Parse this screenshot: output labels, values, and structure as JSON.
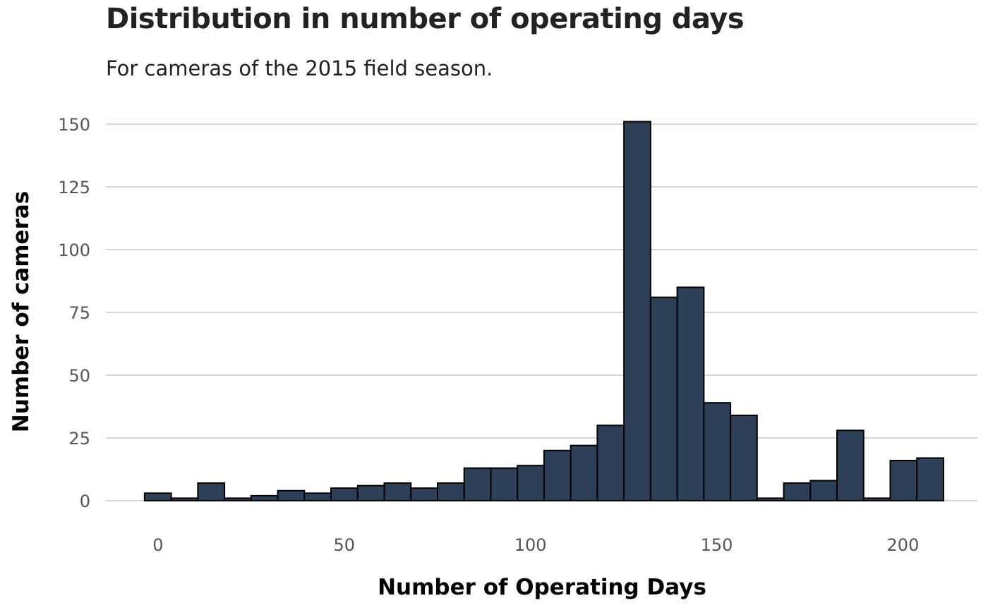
{
  "chart_data": {
    "type": "bar",
    "title": "Distribution in number of operating days",
    "subtitle": "For cameras of the 2015 field season.",
    "xlabel": "Number of Operating Days",
    "ylabel": "Number of cameras",
    "bin_width": 7.15,
    "bin_start": -3.6,
    "values": [
      3,
      1,
      7,
      1,
      2,
      4,
      3,
      5,
      6,
      7,
      5,
      7,
      13,
      13,
      14,
      20,
      22,
      30,
      151,
      81,
      85,
      39,
      34,
      1,
      7,
      8,
      28,
      1,
      16,
      17
    ],
    "xlim": [
      -14,
      220
    ],
    "ylim": [
      0,
      150
    ],
    "x_ticks": [
      "0",
      "50",
      "100",
      "150",
      "200"
    ],
    "y_ticks": [
      "0",
      "25",
      "50",
      "75",
      "100",
      "125",
      "150"
    ],
    "grid": "horizontal",
    "colors": {
      "bar_fill": "#2e4057",
      "bar_edge": "#000000"
    }
  }
}
